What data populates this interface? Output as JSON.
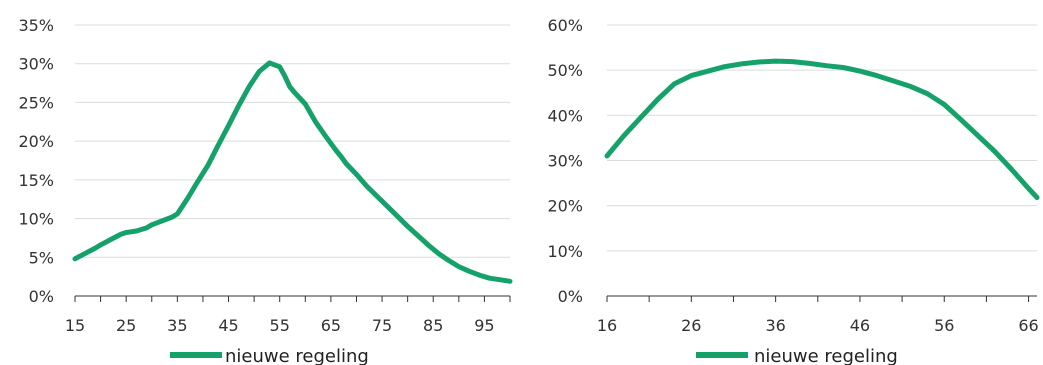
{
  "chart_data": [
    {
      "type": "line",
      "xlim": [
        15,
        100
      ],
      "ylim": [
        0,
        35
      ],
      "x_ticks": [
        15,
        20,
        25,
        30,
        35,
        40,
        45,
        50,
        55,
        60,
        65,
        70,
        75,
        80,
        85,
        90,
        95,
        100
      ],
      "x_tick_labels": [
        "15",
        "25",
        "35",
        "45",
        "55",
        "65",
        "75",
        "85",
        "95"
      ],
      "x_tick_label_values": [
        15,
        25,
        35,
        45,
        55,
        65,
        75,
        85,
        95
      ],
      "y_ticks": [
        0,
        5,
        10,
        15,
        20,
        25,
        30,
        35
      ],
      "y_tick_labels": [
        "0%",
        "5%",
        "10%",
        "15%",
        "20%",
        "25%",
        "30%",
        "35%"
      ],
      "grid": true,
      "legend": "bottom-center",
      "series": [
        {
          "name": "nieuwe regeling",
          "color": "#14a26a",
          "x": [
            15,
            17,
            19,
            20,
            22,
            24,
            25,
            27,
            29,
            30,
            32,
            34,
            35,
            37,
            39,
            41,
            43,
            45,
            47,
            49,
            51,
            53,
            55,
            56,
            57,
            58,
            60,
            62,
            64,
            66,
            67,
            68,
            70,
            72,
            74,
            76,
            78,
            80,
            82,
            84,
            86,
            88,
            90,
            92,
            94,
            96,
            98,
            100
          ],
          "y": [
            4.8,
            5.5,
            6.2,
            6.6,
            7.3,
            8.0,
            8.2,
            8.4,
            8.8,
            9.2,
            9.7,
            10.2,
            10.6,
            12.6,
            14.8,
            16.9,
            19.5,
            22.0,
            24.6,
            27.0,
            29.0,
            30.1,
            29.6,
            28.4,
            27.0,
            26.2,
            24.8,
            22.5,
            20.6,
            18.8,
            18.0,
            17.1,
            15.7,
            14.2,
            12.9,
            11.6,
            10.3,
            9.0,
            7.8,
            6.6,
            5.5,
            4.6,
            3.8,
            3.2,
            2.7,
            2.3,
            2.1,
            1.9
          ]
        }
      ]
    },
    {
      "type": "line",
      "xlim": [
        16,
        67
      ],
      "ylim": [
        0,
        60
      ],
      "x_ticks": [
        16,
        21,
        26,
        31,
        36,
        41,
        46,
        51,
        56,
        61,
        66
      ],
      "x_tick_labels": [
        "16",
        "26",
        "36",
        "46",
        "56",
        "66"
      ],
      "x_tick_label_values": [
        16,
        26,
        36,
        46,
        56,
        66
      ],
      "y_ticks": [
        0,
        10,
        20,
        30,
        40,
        50,
        60
      ],
      "y_tick_labels": [
        "0%",
        "10%",
        "20%",
        "30%",
        "40%",
        "50%",
        "60%"
      ],
      "grid": true,
      "legend": "bottom-center",
      "series": [
        {
          "name": "nieuwe regeling",
          "color": "#14a26a",
          "x": [
            16,
            18,
            20,
            22,
            24,
            26,
            28,
            30,
            32,
            34,
            36,
            38,
            40,
            42,
            44,
            46,
            48,
            50,
            52,
            54,
            56,
            58,
            60,
            62,
            64,
            66,
            67
          ],
          "y": [
            31.0,
            35.5,
            39.5,
            43.5,
            47.0,
            48.8,
            49.8,
            50.8,
            51.4,
            51.8,
            52.0,
            51.9,
            51.5,
            51.0,
            50.6,
            49.8,
            48.8,
            47.6,
            46.4,
            44.8,
            42.4,
            39.0,
            35.5,
            32.0,
            28.0,
            23.8,
            21.8
          ]
        }
      ]
    }
  ]
}
